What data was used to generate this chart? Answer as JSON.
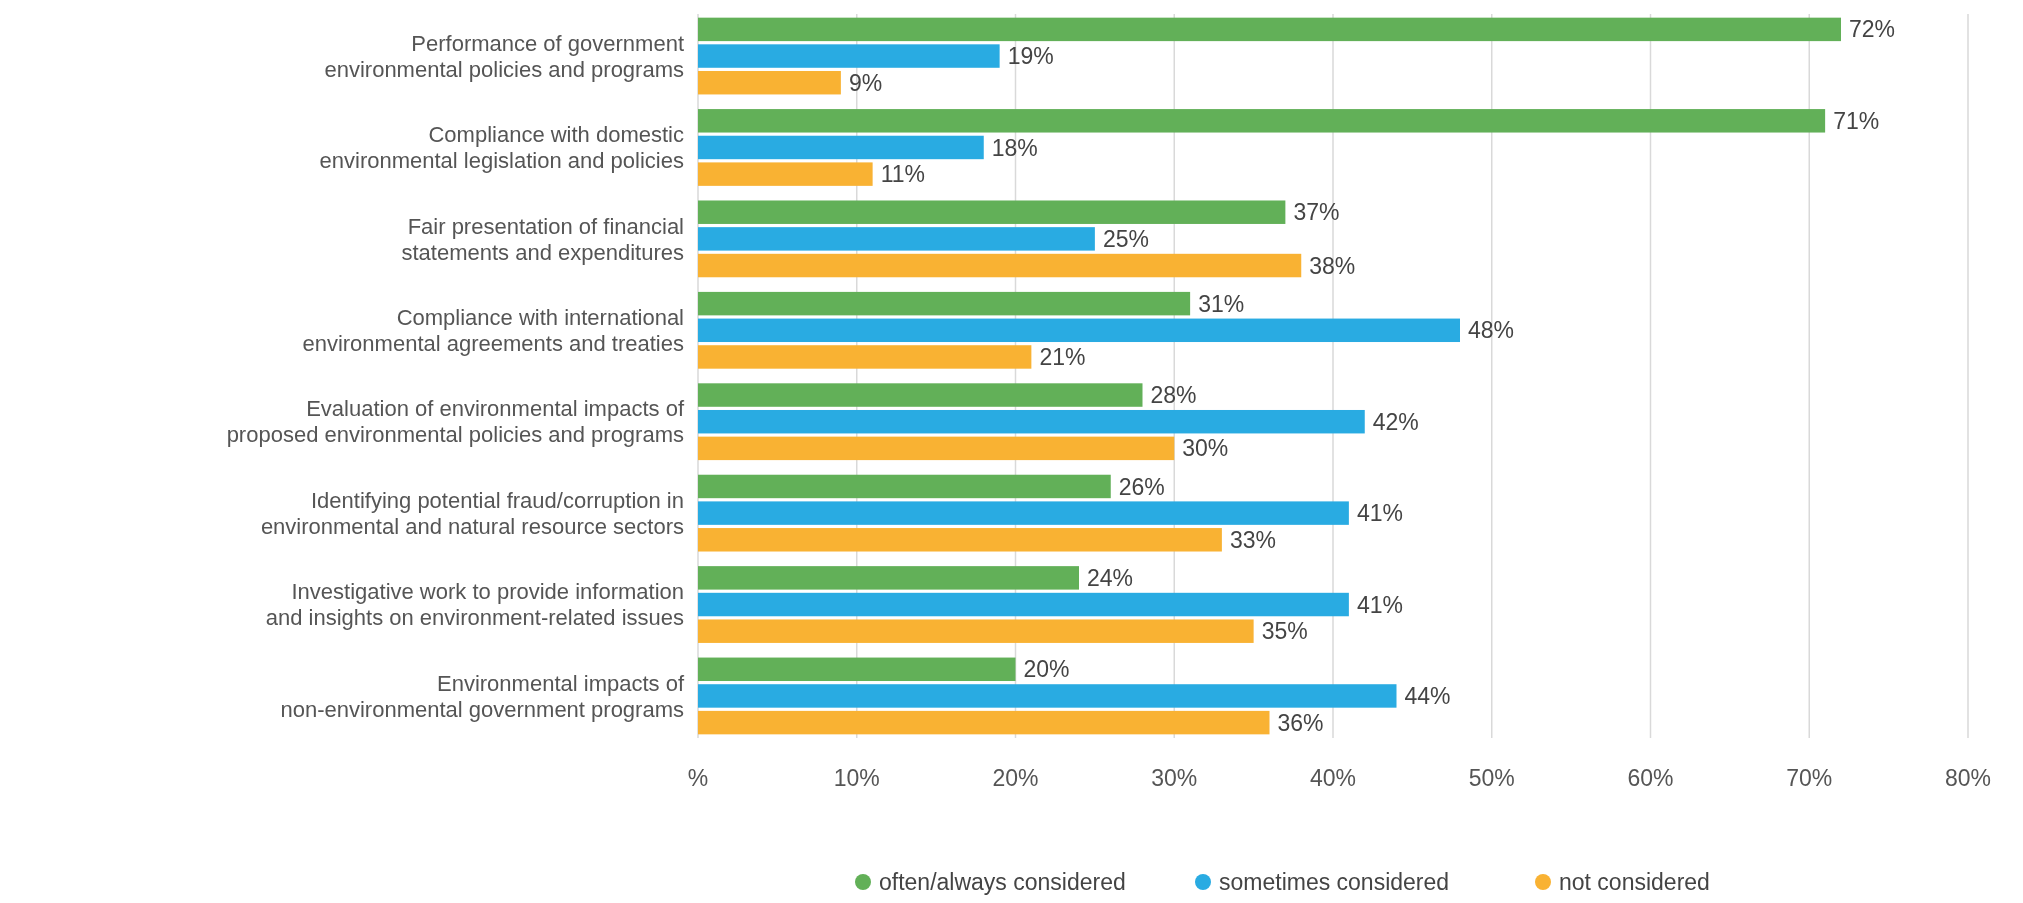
{
  "chart_data": {
    "type": "bar",
    "orientation": "horizontal",
    "categories": [
      "Performance of government environmental policies and programs",
      "Compliance with domestic environmental legislation and policies",
      "Fair presentation of financial statements and expenditures",
      "Compliance with international environmental agreements and treaties",
      "Evaluation of environmental impacts of proposed environmental policies and programs",
      "Identifying potential fraud/corruption in environmental and natural resource sectors",
      "Investigative work to provide information and insights on environment-related issues",
      "Environmental impacts of non-environmental government programs"
    ],
    "series": [
      {
        "name": "often/always considered",
        "color": "#62b058",
        "values": [
          72,
          71,
          37,
          31,
          28,
          26,
          24,
          20
        ],
        "value_labels": [
          "72%",
          "71%",
          "37%",
          "31%",
          "28%",
          "26%",
          "24%",
          "20%"
        ]
      },
      {
        "name": "sometimes considered",
        "color": "#29abe2",
        "values": [
          19,
          18,
          25,
          48,
          42,
          41,
          41,
          44
        ],
        "value_labels": [
          "19%",
          "18%",
          "25%",
          "48%",
          "42%",
          "41%",
          "41%",
          "44%"
        ]
      },
      {
        "name": "not considered",
        "color": "#f9b233",
        "values": [
          9,
          11,
          38,
          21,
          30,
          33,
          35,
          36
        ],
        "value_labels": [
          "9%",
          "11%",
          "38%",
          "21%",
          "30%",
          "33%",
          "35%",
          "36%"
        ]
      }
    ],
    "xlim": [
      0,
      80
    ],
    "xticks": [
      {
        "value": 0,
        "label": "%"
      },
      {
        "value": 10,
        "label": "10%"
      },
      {
        "value": 20,
        "label": "20%"
      },
      {
        "value": 30,
        "label": "30%"
      },
      {
        "value": 40,
        "label": "40%"
      },
      {
        "value": 50,
        "label": "50%"
      },
      {
        "value": 60,
        "label": "60%"
      },
      {
        "value": 70,
        "label": "70%"
      },
      {
        "value": 80,
        "label": "80%"
      }
    ],
    "grid": "x",
    "legend": "bottom",
    "marker": "circle"
  }
}
